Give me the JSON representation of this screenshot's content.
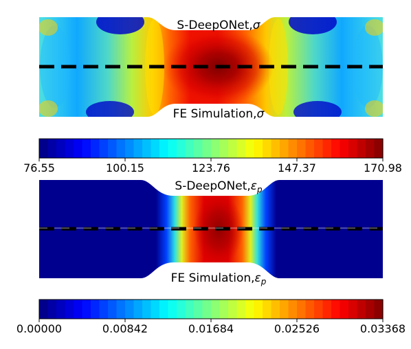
{
  "panels": [
    {
      "label_top": "S-DeepONet,",
      "label_top_symbol": "σ",
      "label_bottom": "FE Simulation,",
      "label_bottom_symbol": "σ",
      "field": "stress"
    },
    {
      "label_top": "S-DeepONet,",
      "label_top_symbol": "ε",
      "label_top_subscript": "p",
      "label_bottom": "FE Simulation,",
      "label_bottom_symbol": "ε",
      "label_bottom_subscript": "p",
      "field": "plastic-strain"
    }
  ],
  "colorbars": [
    {
      "colormap": "jet",
      "levels": 40,
      "min": 76.55,
      "max": 170.98,
      "ticks": [
        "76.55",
        "100.15",
        "123.76",
        "147.37",
        "170.98"
      ]
    },
    {
      "colormap": "jet",
      "levels": 40,
      "min": 0.0,
      "max": 0.03368,
      "ticks": [
        "0.00000",
        "0.00842",
        "0.01684",
        "0.02526",
        "0.03368"
      ]
    }
  ],
  "divider": {
    "style": "dashed",
    "color": "#000000"
  }
}
